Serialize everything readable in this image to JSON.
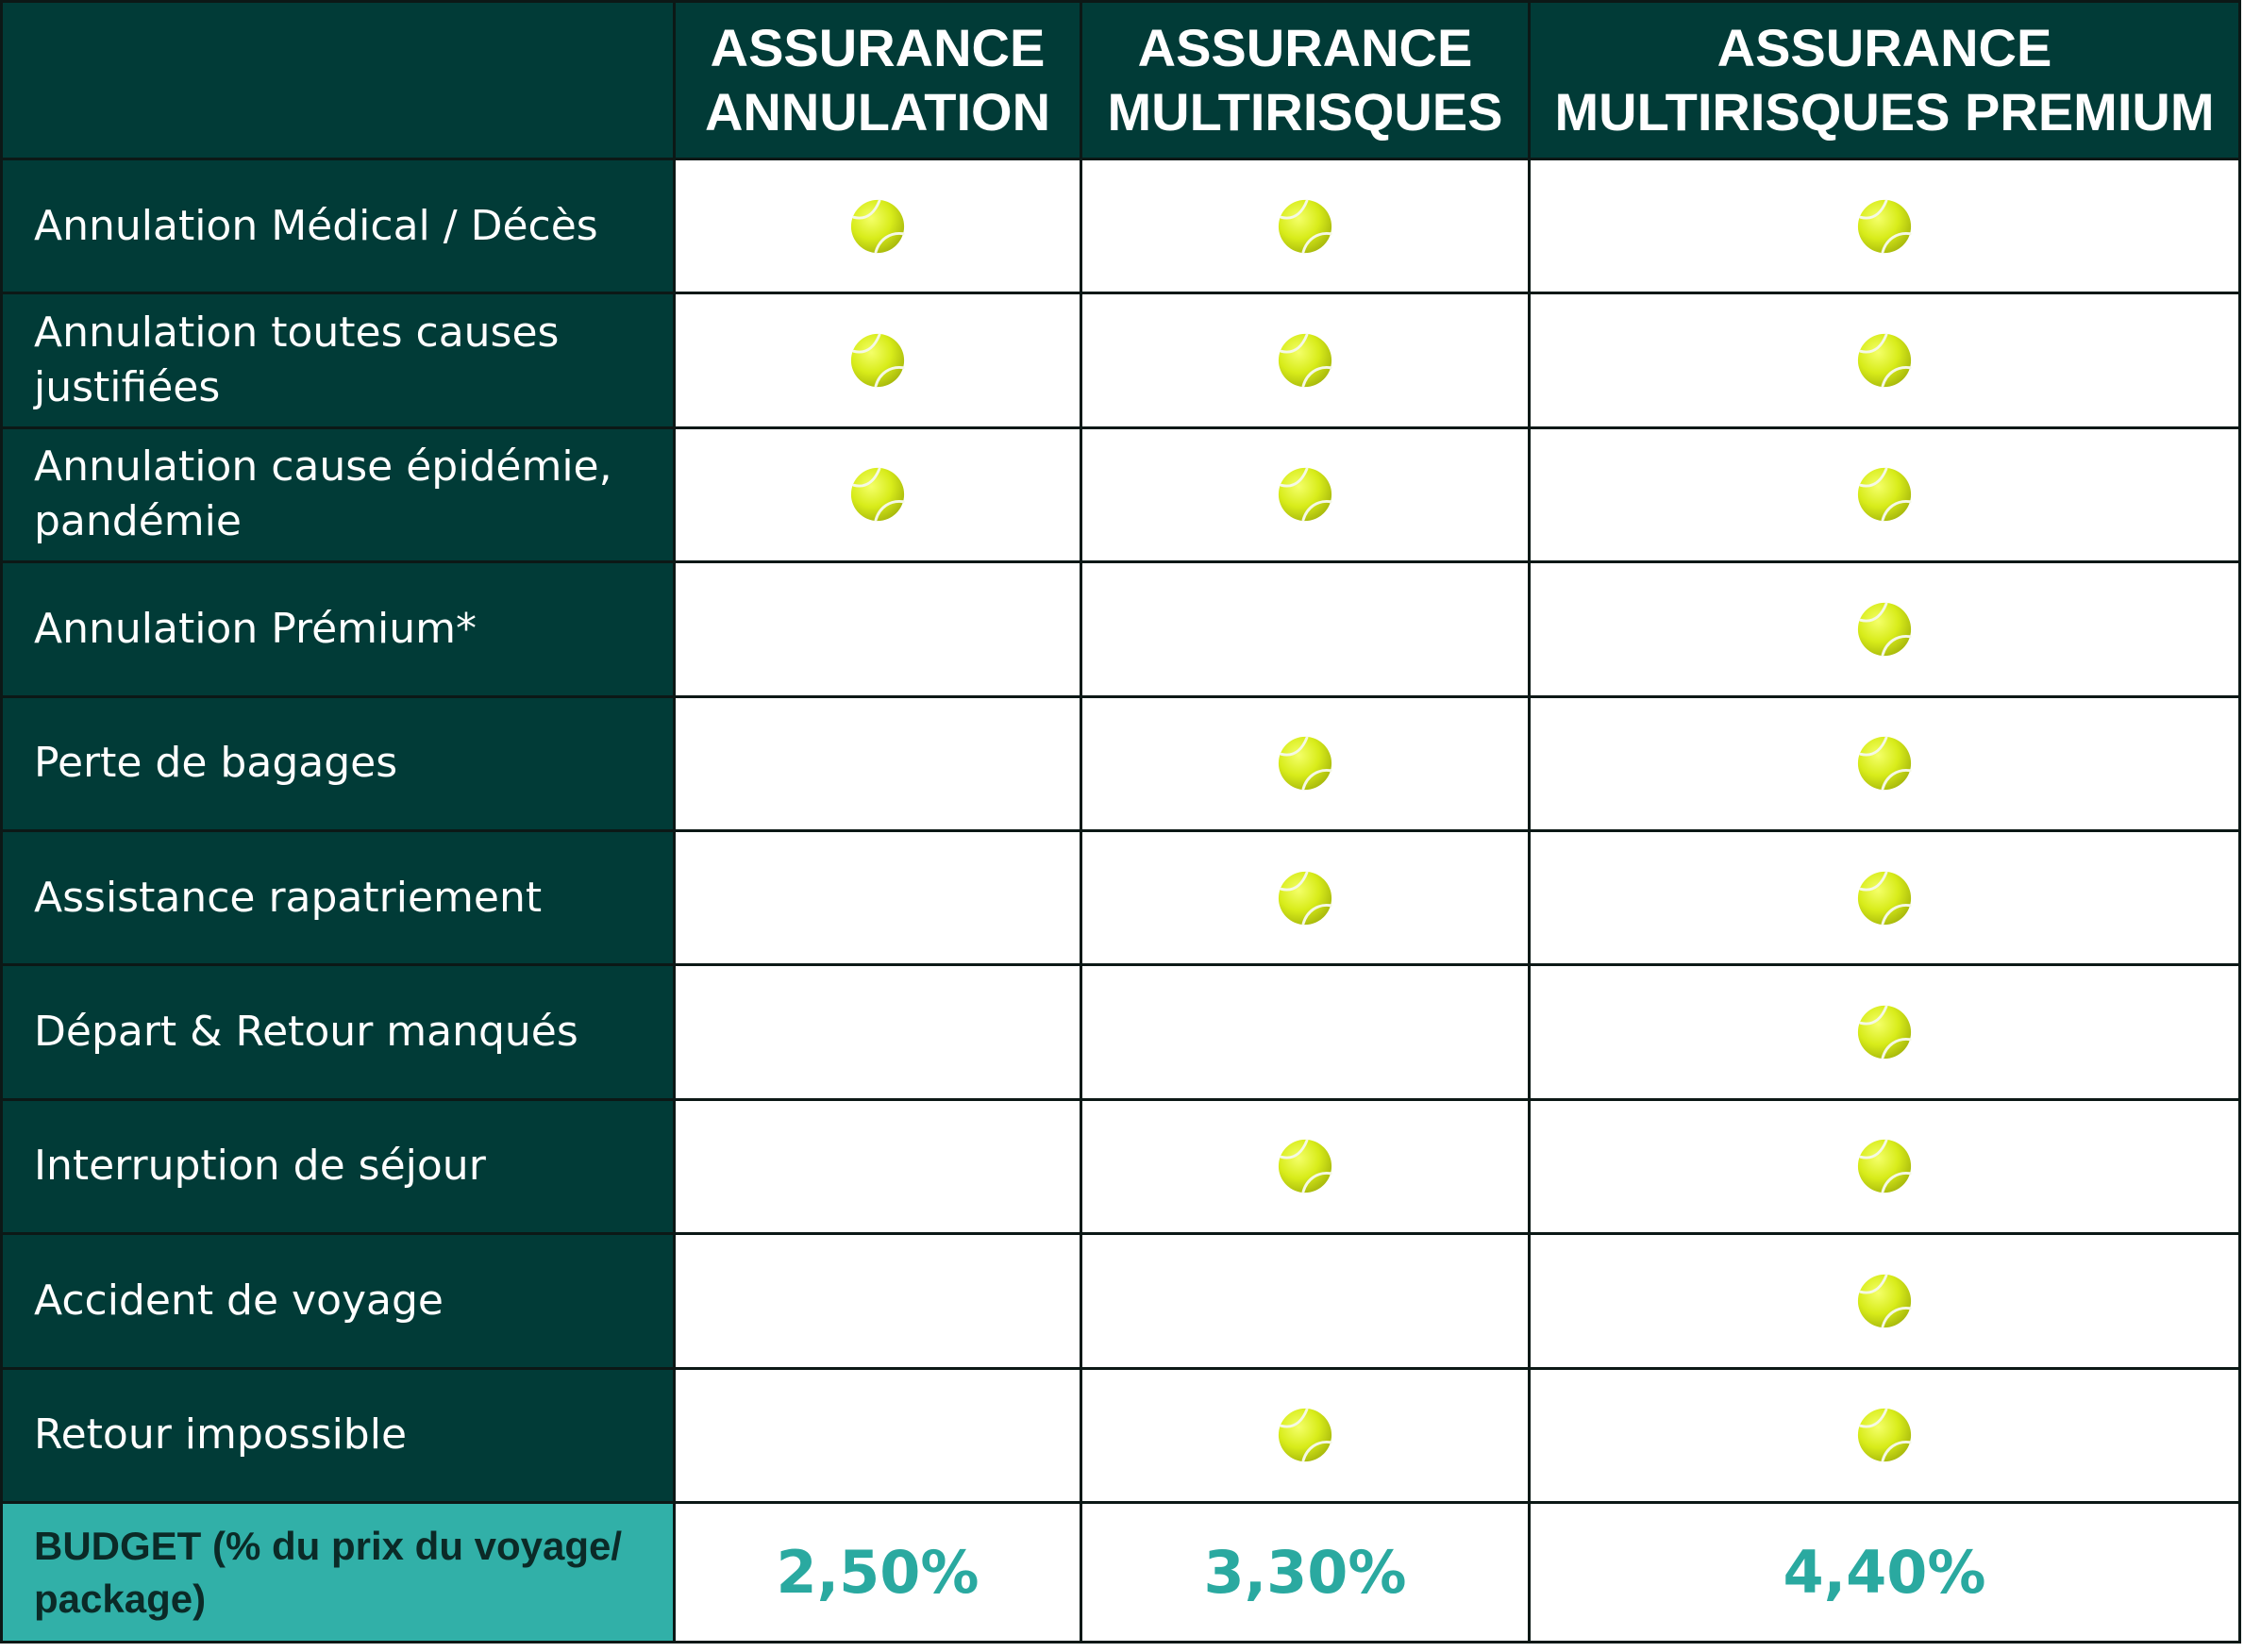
{
  "header": {
    "empty": "",
    "columns": [
      {
        "line1": "ASSURANCE",
        "line2": "ANNULATION"
      },
      {
        "line1": "ASSURANCE",
        "line2": "MULTIRISQUES"
      },
      {
        "line1": "ASSURANCE",
        "line2": "MULTIRISQUES PREMIUM"
      }
    ]
  },
  "rows": [
    {
      "label": "Annulation Médical / Décès",
      "covered": [
        true,
        true,
        true
      ]
    },
    {
      "label": "Annulation toutes causes justifiées",
      "covered": [
        true,
        true,
        true
      ]
    },
    {
      "label": "Annulation cause épidémie, pandémie",
      "covered": [
        true,
        true,
        true
      ]
    },
    {
      "label": "Annulation Prémium*",
      "covered": [
        false,
        false,
        true
      ]
    },
    {
      "label": "Perte de bagages",
      "covered": [
        false,
        true,
        true
      ]
    },
    {
      "label": "Assistance rapatriement",
      "covered": [
        false,
        true,
        true
      ]
    },
    {
      "label": "Départ & Retour manqués",
      "covered": [
        false,
        false,
        true
      ]
    },
    {
      "label": "Interruption de séjour",
      "covered": [
        false,
        true,
        true
      ]
    },
    {
      "label": "Accident de voyage",
      "covered": [
        false,
        false,
        true
      ]
    },
    {
      "label": "Retour impossible",
      "covered": [
        false,
        true,
        true
      ]
    }
  ],
  "budget": {
    "label": "BUDGET (% du prix du voyage/ package)",
    "values": [
      "2,50%",
      "3,30%",
      "4,40%"
    ]
  },
  "colors": {
    "dark_green": "#013b37",
    "teal": "#31b0a8",
    "budget_text": "#2aa9a0",
    "ball_yellow": "#d8ec1a"
  },
  "icons": {
    "covered_marker": "tennis-ball-icon"
  }
}
